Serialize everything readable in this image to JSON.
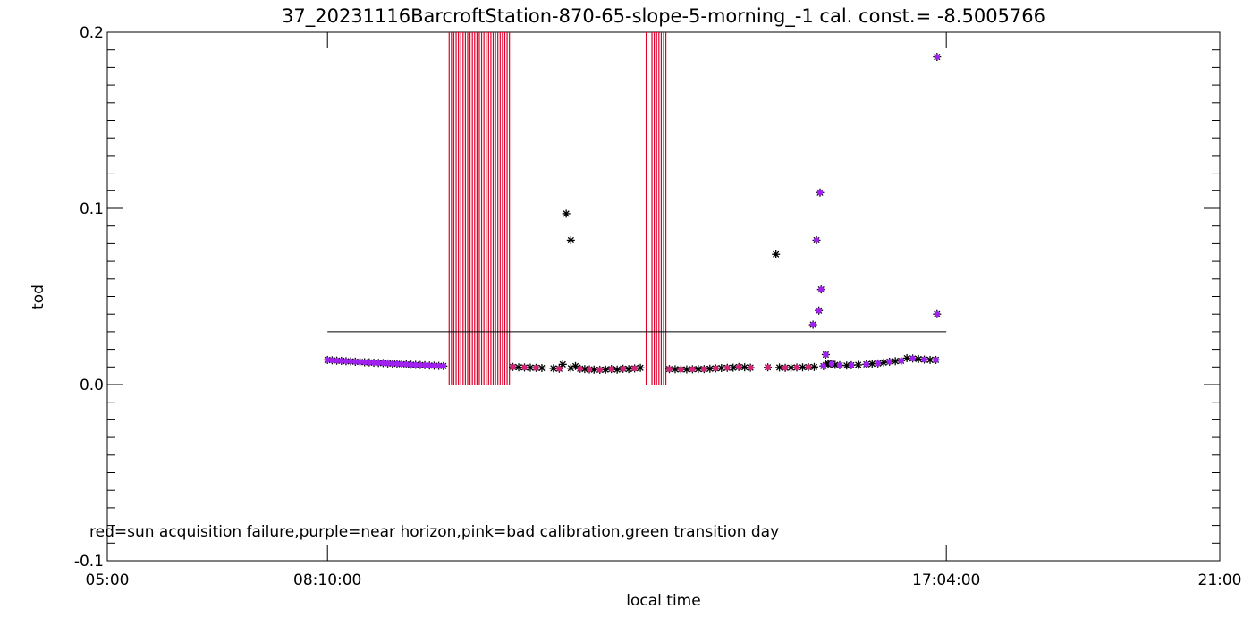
{
  "chart_data": {
    "type": "scatter",
    "title": "37_20231116BarcroftStation-870-65-slope-5-morning_-1 cal. const.= -8.5005766",
    "xlabel": "local time",
    "ylabel": "tod",
    "xlim": [
      "05:00",
      "21:00"
    ],
    "ylim": [
      -0.1,
      0.2
    ],
    "x_ticks": [
      "05:00",
      "08:10:00",
      "17:04:00",
      "21:00"
    ],
    "y_ticks": [
      "-0.1",
      "0.0",
      "0.1",
      "0.2"
    ],
    "y_minor_step": 0.01,
    "annotation": "red=sun acquisition failure,purple=near horizon,pink=bad calibration,green transition day",
    "colors": {
      "tod": "#000000",
      "near_horizon": "#a020f0",
      "bad_calibration": "#d4247a",
      "sun_acquisition_failure": "#e0002a",
      "threshold": "#000000"
    },
    "threshold": {
      "y": 0.03,
      "x_start": "08:10:00",
      "x_end": "17:04:00"
    },
    "sun_failure_lines": [
      "09:55",
      "09:57",
      "09:59",
      "10:01",
      "10:03",
      "10:05",
      "10:07",
      "10:09",
      "10:11",
      "10:13",
      "10:15",
      "10:17",
      "10:19",
      "10:21",
      "10:23",
      "10:25",
      "10:27",
      "10:29",
      "10:31",
      "10:33",
      "10:35",
      "10:37",
      "10:39",
      "10:41",
      "10:43",
      "10:45",
      "10:47",
      "12:45",
      "12:50",
      "12:52",
      "12:54",
      "12:56",
      "12:58",
      "13:00",
      "13:02"
    ],
    "series": [
      {
        "marker": "asterisk",
        "points": [
          [
            "08:10",
            0.014
          ],
          [
            "08:14",
            0.0138
          ],
          [
            "08:18",
            0.0136
          ],
          [
            "08:22",
            0.0135
          ],
          [
            "08:26",
            0.0133
          ],
          [
            "08:30",
            0.0132
          ],
          [
            "08:34",
            0.013
          ],
          [
            "08:38",
            0.0129
          ],
          [
            "08:42",
            0.0127
          ],
          [
            "08:46",
            0.0126
          ],
          [
            "08:50",
            0.0124
          ],
          [
            "08:54",
            0.0123
          ],
          [
            "08:58",
            0.0122
          ],
          [
            "09:02",
            0.012
          ],
          [
            "09:06",
            0.0119
          ],
          [
            "09:10",
            0.0118
          ],
          [
            "09:14",
            0.0116
          ],
          [
            "09:18",
            0.0115
          ],
          [
            "09:22",
            0.0113
          ],
          [
            "09:26",
            0.0112
          ],
          [
            "09:30",
            0.0111
          ],
          [
            "09:34",
            0.011
          ],
          [
            "09:38",
            0.0108
          ],
          [
            "09:42",
            0.0107
          ],
          [
            "09:46",
            0.0106
          ],
          [
            "09:50",
            0.0105
          ],
          [
            "10:50",
            0.01
          ],
          [
            "10:55",
            0.0098
          ],
          [
            "11:00",
            0.0097
          ],
          [
            "11:05",
            0.0096
          ],
          [
            "11:10",
            0.0095
          ],
          [
            "11:15",
            0.0094
          ],
          [
            "11:25",
            0.0092
          ],
          [
            "11:30",
            0.009
          ],
          [
            "11:33",
            0.0115
          ],
          [
            "11:40",
            0.0093
          ],
          [
            "11:44",
            0.0105
          ],
          [
            "11:48",
            0.009
          ],
          [
            "11:52",
            0.0088
          ],
          [
            "11:56",
            0.0086
          ],
          [
            "12:00",
            0.0085
          ],
          [
            "12:05",
            0.0084
          ],
          [
            "12:10",
            0.0085
          ],
          [
            "12:15",
            0.0088
          ],
          [
            "12:20",
            0.0085
          ],
          [
            "12:25",
            0.009
          ],
          [
            "12:30",
            0.0088
          ],
          [
            "12:35",
            0.0092
          ],
          [
            "12:40",
            0.0095
          ],
          [
            "13:05",
            0.0088
          ],
          [
            "13:10",
            0.0087
          ],
          [
            "13:15",
            0.0086
          ],
          [
            "13:20",
            0.0086
          ],
          [
            "13:25",
            0.0087
          ],
          [
            "13:30",
            0.0088
          ],
          [
            "13:35",
            0.0088
          ],
          [
            "13:40",
            0.009
          ],
          [
            "13:45",
            0.0092
          ],
          [
            "13:50",
            0.0094
          ],
          [
            "13:55",
            0.0095
          ],
          [
            "14:00",
            0.0096
          ],
          [
            "14:05",
            0.01
          ],
          [
            "14:10",
            0.0098
          ],
          [
            "14:15",
            0.0096
          ],
          [
            "14:30",
            0.0098
          ],
          [
            "14:40",
            0.0097
          ],
          [
            "14:45",
            0.0095
          ],
          [
            "14:50",
            0.0096
          ],
          [
            "14:55",
            0.0097
          ],
          [
            "15:00",
            0.0098
          ],
          [
            "15:05",
            0.0099
          ],
          [
            "15:10",
            0.01
          ],
          [
            "15:18",
            0.0105
          ],
          [
            "15:22",
            0.0115
          ],
          [
            "15:25",
            0.0118
          ],
          [
            "15:28",
            0.0112
          ],
          [
            "15:32",
            0.011
          ],
          [
            "15:38",
            0.0108
          ],
          [
            "15:42",
            0.011
          ],
          [
            "15:48",
            0.0112
          ],
          [
            "15:55",
            0.0115
          ],
          [
            "16:00",
            0.0118
          ],
          [
            "16:05",
            0.012
          ],
          [
            "16:10",
            0.0125
          ],
          [
            "16:15",
            0.013
          ],
          [
            "16:20",
            0.0133
          ],
          [
            "16:25",
            0.0135
          ],
          [
            "16:30",
            0.015
          ],
          [
            "16:35",
            0.0148
          ],
          [
            "16:40",
            0.0145
          ],
          [
            "16:45",
            0.0142
          ],
          [
            "16:50",
            0.014
          ],
          [
            "16:55",
            0.014
          ],
          [
            "11:36",
            0.097
          ],
          [
            "11:40",
            0.082
          ],
          [
            "14:37",
            0.074
          ],
          [
            "15:09",
            0.034
          ],
          [
            "15:12",
            0.082
          ],
          [
            "15:15",
            0.109
          ],
          [
            "15:14",
            0.042
          ],
          [
            "15:16",
            0.054
          ],
          [
            "15:20",
            0.017
          ],
          [
            "15:22",
            0.012
          ],
          [
            "16:56",
            0.186
          ],
          [
            "16:56",
            0.04
          ]
        ]
      },
      {
        "marker": "dot",
        "color_key": "near_horizon",
        "points": [
          [
            "08:10",
            0.014
          ],
          [
            "08:14",
            0.0138
          ],
          [
            "08:18",
            0.0136
          ],
          [
            "08:22",
            0.0135
          ],
          [
            "08:26",
            0.0133
          ],
          [
            "08:30",
            0.0132
          ],
          [
            "08:34",
            0.013
          ],
          [
            "08:38",
            0.0129
          ],
          [
            "08:42",
            0.0127
          ],
          [
            "08:46",
            0.0126
          ],
          [
            "08:50",
            0.0124
          ],
          [
            "08:54",
            0.0123
          ],
          [
            "08:58",
            0.0122
          ],
          [
            "09:02",
            0.012
          ],
          [
            "09:06",
            0.0119
          ],
          [
            "09:10",
            0.0118
          ],
          [
            "09:14",
            0.0116
          ],
          [
            "09:18",
            0.0115
          ],
          [
            "09:22",
            0.0113
          ],
          [
            "09:26",
            0.0112
          ],
          [
            "09:30",
            0.0111
          ],
          [
            "09:34",
            0.011
          ],
          [
            "09:38",
            0.0108
          ],
          [
            "09:42",
            0.0107
          ],
          [
            "09:46",
            0.0106
          ],
          [
            "09:50",
            0.0105
          ],
          [
            "15:18",
            0.0105
          ],
          [
            "15:25",
            0.0118
          ],
          [
            "15:32",
            0.011
          ],
          [
            "15:42",
            0.011
          ],
          [
            "15:55",
            0.0115
          ],
          [
            "16:05",
            0.012
          ],
          [
            "16:15",
            0.013
          ],
          [
            "16:25",
            0.0135
          ],
          [
            "16:35",
            0.0148
          ],
          [
            "16:45",
            0.0142
          ],
          [
            "16:55",
            0.014
          ],
          [
            "15:12",
            0.082
          ],
          [
            "15:15",
            0.109
          ],
          [
            "15:14",
            0.042
          ],
          [
            "15:16",
            0.054
          ],
          [
            "15:09",
            0.034
          ],
          [
            "15:20",
            0.017
          ],
          [
            "16:56",
            0.186
          ],
          [
            "16:56",
            0.04
          ]
        ]
      },
      {
        "marker": "dot",
        "color_key": "bad_calibration",
        "points": [
          [
            "10:50",
            0.01
          ],
          [
            "11:00",
            0.0097
          ],
          [
            "11:10",
            0.0095
          ],
          [
            "11:30",
            0.009
          ],
          [
            "11:48",
            0.009
          ],
          [
            "11:56",
            0.0086
          ],
          [
            "12:05",
            0.0084
          ],
          [
            "12:15",
            0.0088
          ],
          [
            "12:25",
            0.009
          ],
          [
            "12:35",
            0.0092
          ],
          [
            "13:05",
            0.0088
          ],
          [
            "13:15",
            0.0086
          ],
          [
            "13:25",
            0.0087
          ],
          [
            "13:35",
            0.0088
          ],
          [
            "13:45",
            0.0092
          ],
          [
            "13:55",
            0.0095
          ],
          [
            "14:05",
            0.01
          ],
          [
            "14:15",
            0.0096
          ],
          [
            "14:30",
            0.0098
          ],
          [
            "14:45",
            0.0095
          ],
          [
            "14:55",
            0.0097
          ],
          [
            "15:05",
            0.0099
          ]
        ]
      }
    ]
  }
}
